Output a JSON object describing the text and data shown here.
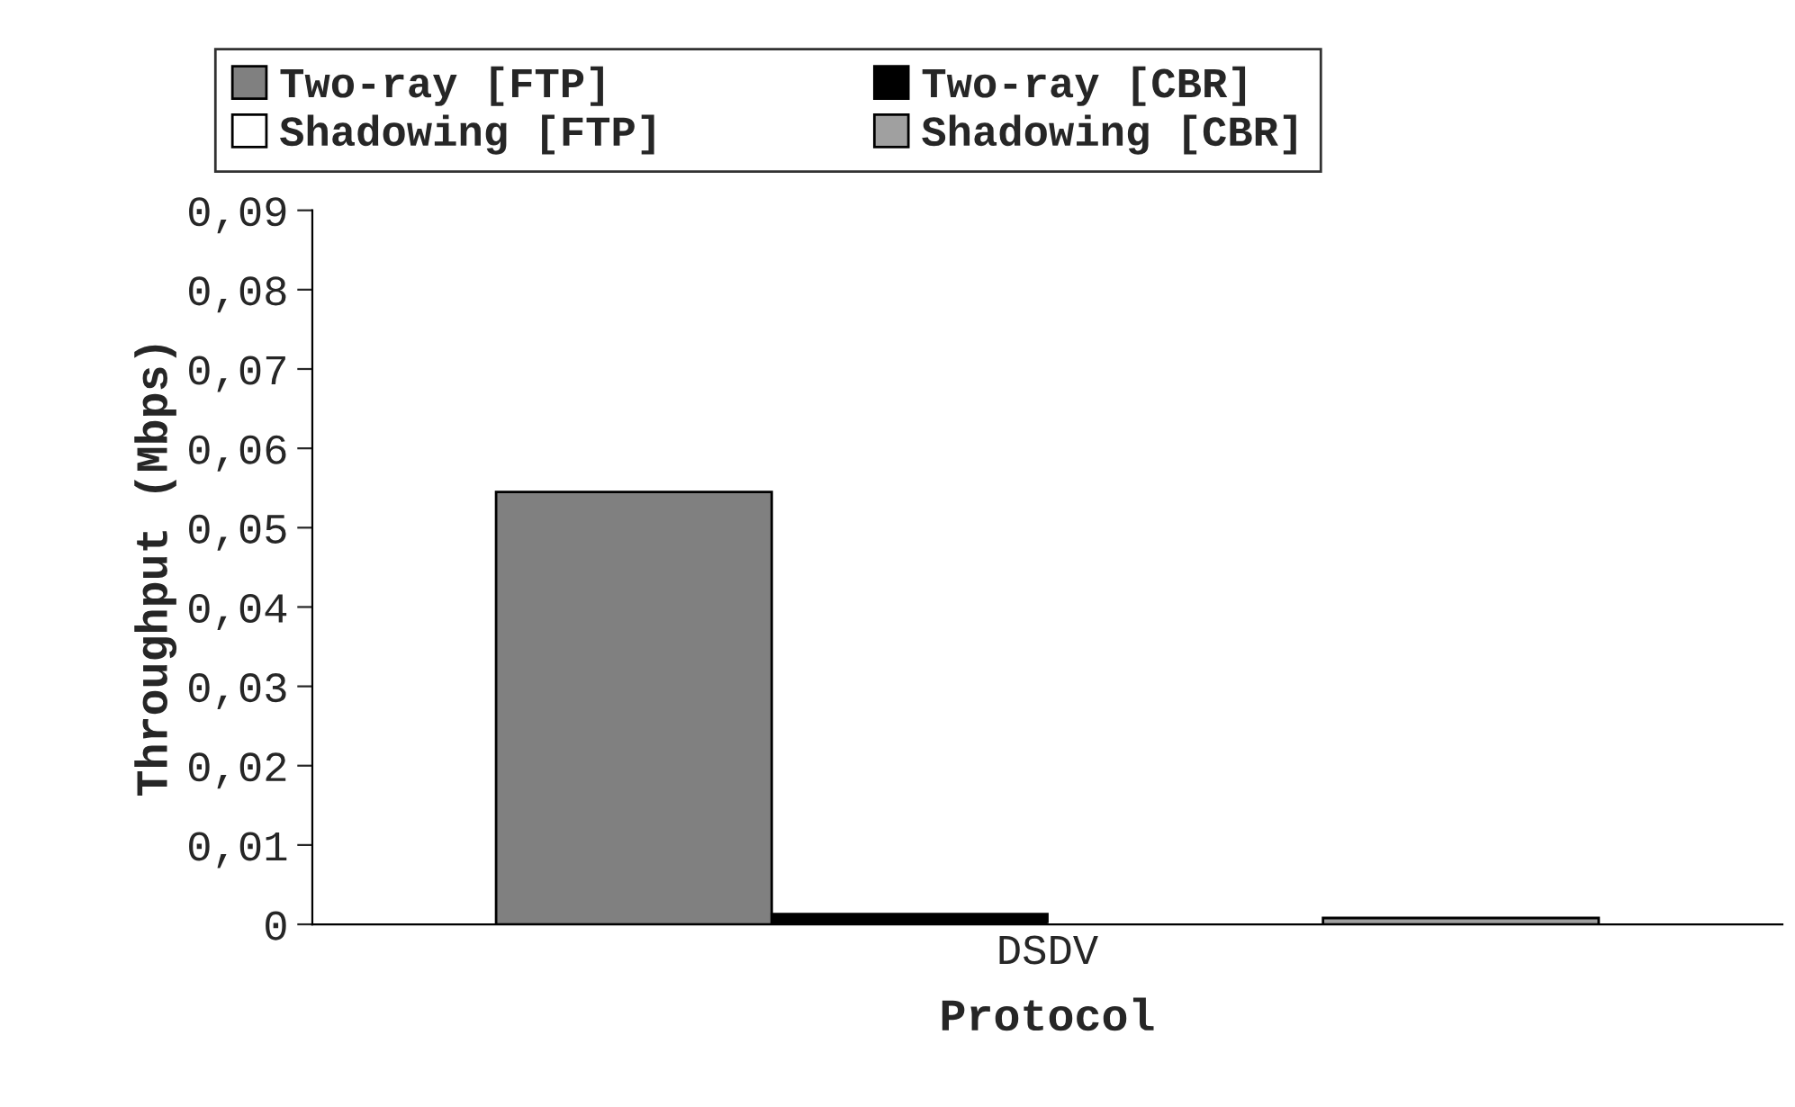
{
  "chart_data": {
    "type": "bar",
    "categories": [
      "DSDV"
    ],
    "xlabel": "Protocol",
    "ylabel": "Throughput (Mbps)",
    "series": [
      {
        "name": "Two-ray [FTP]",
        "color": "#808080",
        "values": [
          0.0545
        ]
      },
      {
        "name": "Two-ray [CBR]",
        "color": "#000000",
        "values": [
          0.0013
        ]
      },
      {
        "name": "Shadowing [FTP]",
        "color": "#ffffff",
        "values": [
          null
        ]
      },
      {
        "name": "Shadowing [CBR]",
        "color": "#a0a0a0",
        "values": [
          0.0008
        ]
      }
    ],
    "ylim": [
      0,
      0.09
    ],
    "yticks": [
      {
        "value": 0,
        "label": "0"
      },
      {
        "value": 0.01,
        "label": "0,01"
      },
      {
        "value": 0.02,
        "label": "0,02"
      },
      {
        "value": 0.03,
        "label": "0,03"
      },
      {
        "value": 0.04,
        "label": "0,04"
      },
      {
        "value": 0.05,
        "label": "0,05"
      },
      {
        "value": 0.06,
        "label": "0,06"
      },
      {
        "value": 0.07,
        "label": "0,07"
      },
      {
        "value": 0.08,
        "label": "0,08"
      },
      {
        "value": 0.09,
        "label": "0,09"
      }
    ],
    "grid": false,
    "legend": "top"
  }
}
